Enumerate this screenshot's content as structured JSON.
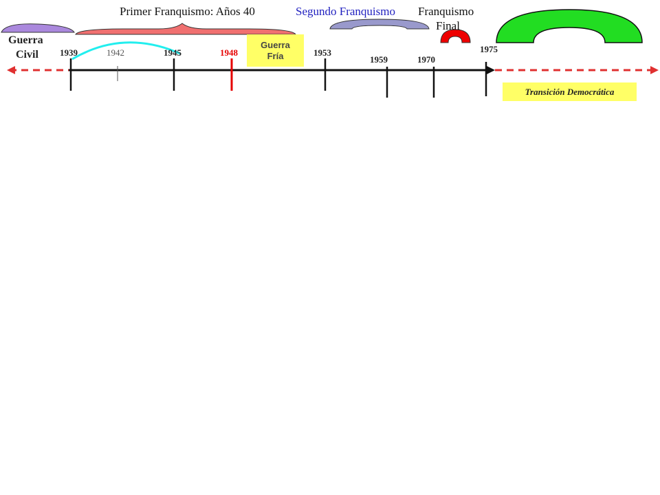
{
  "periods": {
    "primer": "Primer Franquismo: Años 40",
    "segundo": "Segundo Franquismo",
    "final_line1": "Franquismo",
    "final_line2": "Final"
  },
  "guerra_civil": {
    "line1": "Guerra",
    "line2": "Civil"
  },
  "guerra_fria": {
    "line1": "Guerra",
    "line2": "Fría"
  },
  "transicion": "Transición Democrática",
  "years": {
    "y1939": "1939",
    "y1942": "1942",
    "y1945": "1945",
    "y1948": "1948",
    "y1953": "1953",
    "y1959": "1959",
    "y1970": "1970",
    "y1975": "1975"
  },
  "colors": {
    "guerra_civil": "#aa88dd",
    "primer_franquismo": "#f07070",
    "segundo_franquismo": "#9999cc",
    "franquismo_final": "#ee0000",
    "transicion_arc": "#22dd22",
    "ww2_arc": "#22eeee",
    "highlight_1948": "#e60000",
    "guerra_fria_box": "#ffff66",
    "transicion_box": "#ffff66",
    "dashed_line": "#e03030",
    "segundo_text": "#1f1fbf"
  }
}
